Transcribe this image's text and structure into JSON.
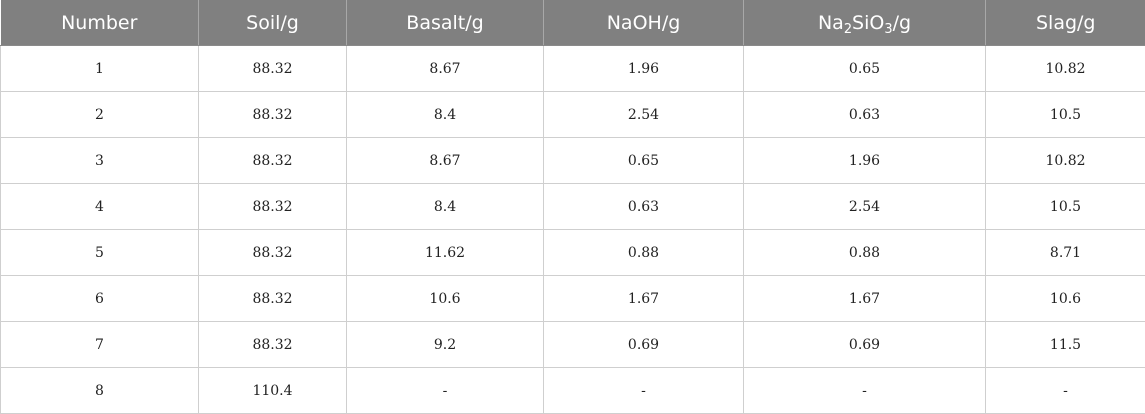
{
  "table": {
    "headers": [
      {
        "main": "Number"
      },
      {
        "main": "Soil/g"
      },
      {
        "main": "Basalt/g"
      },
      {
        "main": "NaOH/g"
      },
      {
        "parts": [
          "Na",
          "2",
          "SiO",
          "3",
          "/g"
        ]
      },
      {
        "main": "Slag/g"
      }
    ],
    "rows": [
      [
        "1",
        "88.32",
        "8.67",
        "1.96",
        "0.65",
        "10.82"
      ],
      [
        "2",
        "88.32",
        "8.4",
        "2.54",
        "0.63",
        "10.5"
      ],
      [
        "3",
        "88.32",
        "8.67",
        "0.65",
        "1.96",
        "10.82"
      ],
      [
        "4",
        "88.32",
        "8.4",
        "0.63",
        "2.54",
        "10.5"
      ],
      [
        "5",
        "88.32",
        "11.62",
        "0.88",
        "0.88",
        "8.71"
      ],
      [
        "6",
        "88.32",
        "10.6",
        "1.67",
        "1.67",
        "10.6"
      ],
      [
        "7",
        "88.32",
        "9.2",
        "0.69",
        "0.69",
        "11.5"
      ],
      [
        "8",
        "110.4",
        "-",
        "-",
        "-",
        "-"
      ]
    ]
  }
}
